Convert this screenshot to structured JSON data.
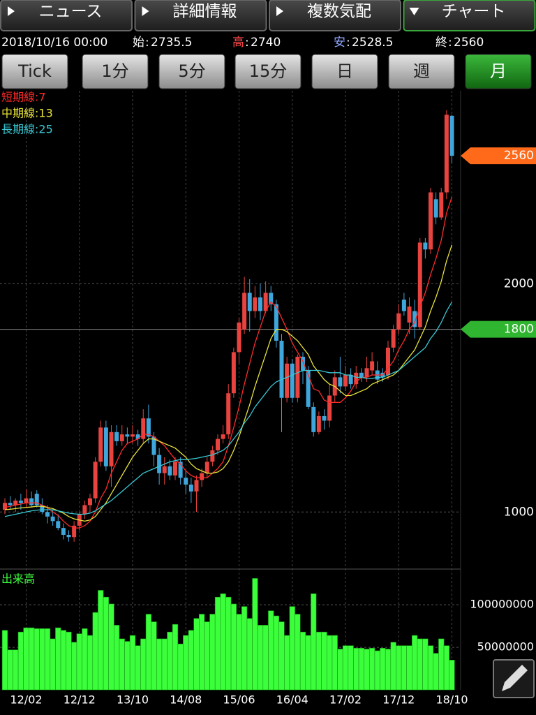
{
  "header": {
    "tabs": [
      "ニュース",
      "詳細情報",
      "複数気配",
      "チャート"
    ],
    "active_tab": 3,
    "date": "2018/10/16 00:00",
    "separator": ":",
    "info": [
      {
        "label": "始",
        "color": "#ffffff",
        "path": "open"
      },
      {
        "label": "高",
        "color": "#ff4a4a",
        "path": "high"
      },
      {
        "label": "安",
        "color": "#8fa8ff",
        "path": "low"
      },
      {
        "label": "終",
        "color": "#ffffff",
        "path": "close"
      }
    ]
  },
  "periods": [
    "Tick",
    "1分",
    "5分",
    "15分",
    "日",
    "週",
    "月"
  ],
  "active_period": 6,
  "chart_data": [
    {
      "type": "candlestick",
      "categories": [
        null,
        null,
        null,
        null,
        "12/02",
        null,
        null,
        null,
        null,
        null,
        null,
        null,
        null,
        null,
        "12/12",
        null,
        null,
        null,
        null,
        null,
        null,
        null,
        null,
        null,
        "13/10",
        null,
        null,
        null,
        null,
        null,
        null,
        null,
        null,
        null,
        "14/08",
        null,
        null,
        null,
        null,
        null,
        null,
        null,
        null,
        null,
        "15/06",
        null,
        null,
        null,
        null,
        null,
        null,
        null,
        null,
        null,
        "16/04",
        null,
        null,
        null,
        null,
        null,
        null,
        null,
        null,
        null,
        "17/02",
        null,
        null,
        null,
        null,
        null,
        null,
        null,
        null,
        null,
        "17/12",
        null,
        null,
        null,
        null,
        null,
        null,
        null,
        null,
        null,
        "18/10"
      ],
      "open": [
        1010,
        1040,
        1030,
        1050,
        1040,
        1060,
        1080,
        1030,
        1000,
        980,
        960,
        930,
        900,
        890,
        940,
        990,
        1030,
        1060,
        1220,
        1370,
        1200,
        1350,
        1310,
        1340,
        1330,
        1340,
        1320,
        1410,
        1330,
        1250,
        1170,
        1200,
        1160,
        1220,
        1150,
        1120,
        1090,
        1140,
        1170,
        1220,
        1270,
        1320,
        1340,
        1520,
        1700,
        1800,
        1960,
        1880,
        1940,
        1880,
        1960,
        1910,
        1750,
        1500,
        1650,
        1500,
        1680,
        1620,
        1460,
        1350,
        1420,
        1400,
        1510,
        1590,
        1550,
        1600,
        1560,
        1610,
        1590,
        1620,
        1620,
        1610,
        1600,
        1720,
        1800,
        1930,
        1830,
        1880,
        1810,
        2180,
        2150,
        2370,
        2290,
        2400,
        2735.5
      ],
      "high": [
        1060,
        1070,
        1060,
        1080,
        1100,
        1090,
        1095,
        1060,
        1030,
        1010,
        990,
        950,
        920,
        960,
        1000,
        1050,
        1080,
        1240,
        1400,
        1400,
        1380,
        1380,
        1380,
        1370,
        1380,
        1360,
        1450,
        1470,
        1350,
        1280,
        1240,
        1230,
        1240,
        1240,
        1180,
        1150,
        1160,
        1190,
        1240,
        1290,
        1340,
        1380,
        1560,
        1720,
        1850,
        2030,
        2020,
        1990,
        2000,
        2010,
        1990,
        1930,
        1780,
        1680,
        1670,
        1690,
        1700,
        1640,
        1480,
        1440,
        1450,
        1560,
        1620,
        1680,
        1640,
        1630,
        1640,
        1630,
        1680,
        1700,
        1660,
        1630,
        1750,
        1820,
        1910,
        1960,
        1940,
        1930,
        2200,
        2200,
        2420,
        2400,
        2420,
        2760,
        2740
      ],
      "low": [
        990,
        1010,
        1000,
        1010,
        1020,
        1020,
        1020,
        990,
        950,
        940,
        920,
        880,
        870,
        870,
        920,
        970,
        1000,
        1040,
        1200,
        1180,
        1110,
        1290,
        1290,
        1300,
        1300,
        1290,
        1300,
        1300,
        1200,
        1120,
        1120,
        1140,
        1140,
        1120,
        1080,
        1040,
        1000,
        1110,
        1150,
        1200,
        1250,
        1300,
        1320,
        1500,
        1650,
        1780,
        1790,
        1850,
        1840,
        1870,
        1880,
        1720,
        1350,
        1480,
        1480,
        1480,
        1560,
        1450,
        1330,
        1340,
        1360,
        1370,
        1480,
        1520,
        1530,
        1540,
        1540,
        1570,
        1570,
        1600,
        1560,
        1570,
        1580,
        1700,
        1780,
        1860,
        1780,
        1760,
        1800,
        2110,
        2130,
        2260,
        2280,
        2370,
        2528.5
      ],
      "close": [
        1040,
        1030,
        1050,
        1040,
        1060,
        1030,
        1030,
        1000,
        980,
        960,
        930,
        900,
        890,
        940,
        990,
        1030,
        1060,
        1220,
        1370,
        1200,
        1350,
        1310,
        1340,
        1330,
        1340,
        1320,
        1410,
        1330,
        1250,
        1170,
        1200,
        1160,
        1220,
        1150,
        1120,
        1090,
        1140,
        1170,
        1220,
        1270,
        1320,
        1340,
        1520,
        1700,
        1830,
        1960,
        1880,
        1940,
        1880,
        1960,
        1910,
        1750,
        1500,
        1650,
        1500,
        1680,
        1620,
        1460,
        1350,
        1420,
        1400,
        1510,
        1590,
        1550,
        1600,
        1560,
        1610,
        1590,
        1630,
        1660,
        1580,
        1590,
        1720,
        1800,
        1870,
        1880,
        1900,
        1810,
        2180,
        2150,
        2400,
        2290,
        2400,
        2740,
        2560
      ],
      "up_color": "#e8433f",
      "down_color": "#3fa6dc",
      "ylim": [
        750,
        2845
      ],
      "yticks": [
        1000,
        2000
      ],
      "overlays": [
        {
          "name": "短期線:7",
          "color": "#ff2a2a",
          "values": [
            1020,
            1025,
            1030,
            1035,
            1040,
            1040,
            1040,
            1030,
            1020,
            1000,
            985,
            960,
            940,
            930,
            930,
            940,
            960,
            1000,
            1060,
            1100,
            1170,
            1220,
            1270,
            1300,
            1310,
            1320,
            1340,
            1340,
            1330,
            1310,
            1290,
            1260,
            1230,
            1210,
            1180,
            1160,
            1150,
            1150,
            1150,
            1170,
            1190,
            1220,
            1290,
            1370,
            1460,
            1560,
            1650,
            1740,
            1810,
            1880,
            1920,
            1900,
            1850,
            1800,
            1740,
            1700,
            1660,
            1600,
            1540,
            1530,
            1490,
            1480,
            1480,
            1480,
            1500,
            1530,
            1570,
            1590,
            1590,
            1600,
            1600,
            1600,
            1630,
            1660,
            1710,
            1750,
            1800,
            1830,
            1900,
            1960,
            2040,
            2110,
            2190,
            2310,
            2380
          ]
        },
        {
          "name": "中期線:13",
          "color": "#e8e23a",
          "values": [
            1010,
            1012,
            1015,
            1018,
            1020,
            1022,
            1025,
            1025,
            1020,
            1015,
            1005,
            995,
            980,
            970,
            965,
            960,
            965,
            980,
            1010,
            1040,
            1080,
            1120,
            1160,
            1200,
            1240,
            1270,
            1300,
            1320,
            1320,
            1310,
            1300,
            1290,
            1280,
            1260,
            1240,
            1210,
            1190,
            1180,
            1170,
            1170,
            1175,
            1190,
            1220,
            1270,
            1330,
            1400,
            1470,
            1550,
            1620,
            1690,
            1760,
            1800,
            1800,
            1790,
            1770,
            1750,
            1720,
            1690,
            1640,
            1610,
            1580,
            1560,
            1550,
            1530,
            1510,
            1510,
            1520,
            1530,
            1540,
            1560,
            1570,
            1580,
            1590,
            1600,
            1620,
            1650,
            1680,
            1710,
            1760,
            1810,
            1880,
            1940,
            2010,
            2100,
            2170
          ]
        },
        {
          "name": "長期線:25",
          "color": "#38c8d4",
          "values": [
            980,
            985,
            990,
            995,
            1000,
            1005,
            1008,
            1010,
            1010,
            1010,
            1005,
            1000,
            995,
            992,
            990,
            990,
            995,
            1005,
            1020,
            1035,
            1050,
            1070,
            1090,
            1110,
            1130,
            1150,
            1170,
            1180,
            1190,
            1200,
            1210,
            1220,
            1225,
            1230,
            1230,
            1232,
            1235,
            1240,
            1245,
            1250,
            1260,
            1270,
            1290,
            1320,
            1350,
            1390,
            1420,
            1460,
            1490,
            1520,
            1550,
            1570,
            1580,
            1590,
            1600,
            1610,
            1620,
            1620,
            1620,
            1620,
            1615,
            1610,
            1610,
            1610,
            1600,
            1600,
            1590,
            1590,
            1585,
            1585,
            1590,
            1590,
            1600,
            1610,
            1620,
            1640,
            1660,
            1680,
            1700,
            1720,
            1760,
            1790,
            1830,
            1880,
            1920
          ]
        }
      ],
      "markers": [
        {
          "value": 2560,
          "color": "#ff6a1a",
          "line": false
        },
        {
          "value": 1800,
          "color": "#2fb52f",
          "line": true
        }
      ]
    },
    {
      "type": "bar",
      "title": "出来高",
      "color": "#3cff3c",
      "values": [
        70000000,
        47000000,
        47000000,
        68000000,
        73000000,
        73000000,
        72000000,
        72000000,
        72000000,
        60000000,
        73000000,
        70000000,
        68000000,
        56000000,
        66000000,
        72000000,
        64000000,
        91000000,
        117000000,
        109000000,
        101000000,
        76000000,
        60000000,
        57000000,
        64000000,
        52000000,
        60000000,
        89000000,
        80000000,
        60000000,
        60000000,
        68000000,
        77000000,
        54000000,
        64000000,
        70000000,
        84000000,
        89000000,
        80000000,
        89000000,
        109000000,
        113000000,
        109000000,
        101000000,
        89000000,
        98000000,
        84000000,
        131000000,
        76000000,
        76000000,
        93000000,
        87000000,
        80000000,
        64000000,
        98000000,
        89000000,
        68000000,
        64000000,
        113000000,
        68000000,
        68000000,
        64000000,
        64000000,
        48000000,
        52000000,
        52000000,
        49000000,
        49000000,
        48000000,
        49000000,
        46000000,
        49000000,
        48000000,
        56000000,
        52000000,
        52000000,
        52000000,
        64000000,
        60000000,
        60000000,
        52000000,
        43000000,
        60000000,
        52000000,
        35000000
      ],
      "ylim": [
        0,
        142000000
      ],
      "yticks": [
        50000000,
        100000000
      ]
    }
  ]
}
